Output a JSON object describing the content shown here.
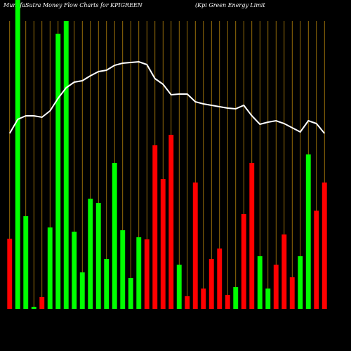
{
  "chart_data": {
    "type": "bar",
    "title": "MunafaSutra  Money Flow  Charts for KPIGREEN",
    "subtitle": "(Kpi  Green  Energy Limit",
    "categories": [
      null,
      null,
      null,
      null,
      null,
      null,
      null,
      null,
      null,
      null,
      null,
      null,
      null,
      null,
      null,
      null,
      null,
      null,
      null,
      null,
      null,
      null,
      null,
      null,
      null,
      null,
      null,
      null,
      null,
      null,
      null,
      null,
      null,
      null,
      null,
      null,
      null,
      null,
      null,
      null
    ],
    "values": [
      100,
      440,
      132,
      3,
      17,
      116,
      392,
      410,
      110,
      52,
      157,
      151,
      71,
      208,
      112,
      44,
      102,
      99,
      233,
      185,
      248,
      63,
      18,
      180,
      29,
      71,
      86,
      20,
      31,
      135,
      208,
      75,
      29,
      63,
      106,
      45,
      75,
      220,
      140,
      180
    ],
    "colors": [
      "#ff0000",
      "#00ff00",
      "#00ff00",
      "#00ff00",
      "#ff0000",
      "#00ff00",
      "#00ff00",
      "#00ff00",
      "#00ff00",
      "#00ff00",
      "#00ff00",
      "#00ff00",
      "#00ff00",
      "#00ff00",
      "#00ff00",
      "#00ff00",
      "#00ff00",
      "#ff0000",
      "#ff0000",
      "#ff0000",
      "#ff0000",
      "#00ff00",
      "#ff0000",
      "#ff0000",
      "#ff0000",
      "#ff0000",
      "#ff0000",
      "#ff0000",
      "#00ff00",
      "#ff0000",
      "#ff0000",
      "#00ff00",
      "#00ff00",
      "#ff0000",
      "#ff0000",
      "#ff0000",
      "#00ff00",
      "#00ff00",
      "#ff0000",
      "#ff0000"
    ],
    "line": {
      "color": "#ffffff",
      "values": [
        250,
        270,
        275,
        275,
        273,
        282,
        300,
        315,
        323,
        325,
        332,
        338,
        340,
        347,
        350,
        351,
        352,
        348,
        328,
        320,
        305,
        306,
        306,
        295,
        292,
        290,
        288,
        286,
        285,
        290,
        275,
        263,
        266,
        268,
        264,
        258,
        252,
        268,
        264,
        250
      ]
    },
    "ylim": [
      0,
      440
    ]
  }
}
